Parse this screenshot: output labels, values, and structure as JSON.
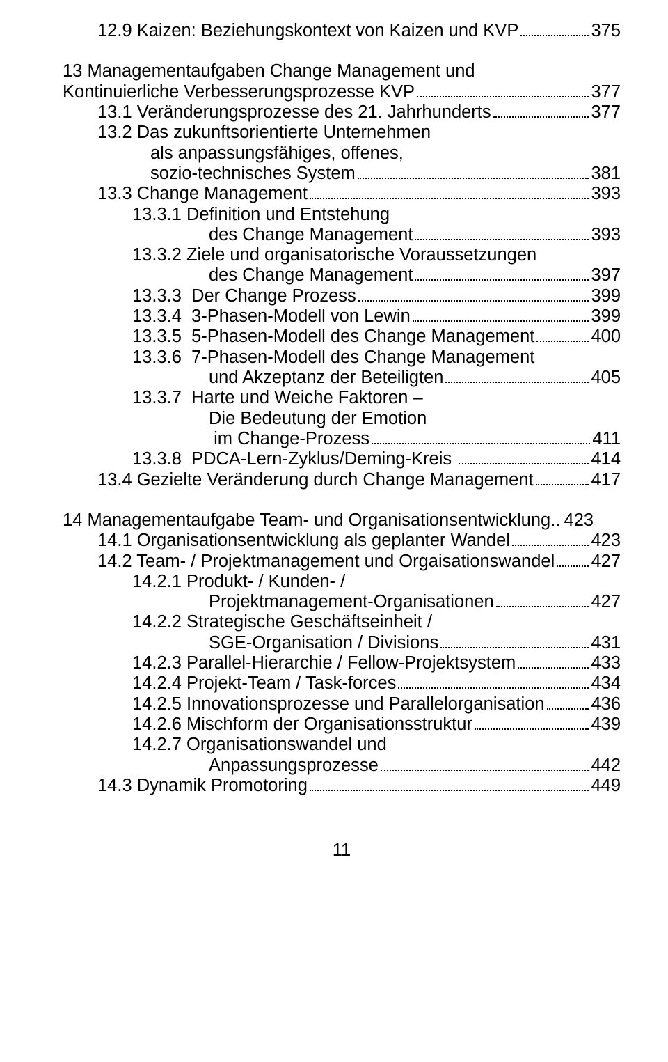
{
  "footer_page": "11",
  "lines": [
    {
      "type": "entry",
      "indent": "h-indent-1",
      "label": "12.9 Kaizen: Beziehungskontext von Kaizen und KVP",
      "page": "375"
    },
    {
      "type": "blank"
    },
    {
      "type": "cont",
      "indent": "h-indent-0",
      "text": "13 Managementaufgaben Change Management und"
    },
    {
      "type": "entry",
      "indent": "h-indent-0",
      "label": "Kontinuierliche Verbesserungsprozesse KVP",
      "page": "377"
    },
    {
      "type": "entry",
      "indent": "h-indent-1",
      "label": "13.1 Veränderungsprozesse des 21. Jahrhunderts",
      "page": "377"
    },
    {
      "type": "cont",
      "indent": "h-indent-1",
      "text": "13.2 Das zukunftsorientierte Unternehmen"
    },
    {
      "type": "cont",
      "indent": "h-cont-2a",
      "text": "als anpassungsfähiges, offenes,"
    },
    {
      "type": "entry",
      "indent": "h-cont-2a",
      "label": "sozio-technisches System",
      "page": "381"
    },
    {
      "type": "entry",
      "indent": "h-indent-1",
      "label": "13.3 Change Management",
      "page": "393"
    },
    {
      "type": "cont",
      "indent": "h-indent-2",
      "text": "13.3.1 Definition und Entstehung"
    },
    {
      "type": "entry",
      "indent": "h-cont-4",
      "label": "des Change Management",
      "page": "393"
    },
    {
      "type": "cont",
      "indent": "h-indent-2",
      "text": "13.3.2 Ziele und organisatorische Voraussetzungen"
    },
    {
      "type": "entry",
      "indent": "h-cont-4",
      "label": "des Change Management",
      "page": "397"
    },
    {
      "type": "entry",
      "indent": "h-indent-2",
      "label": "13.3.3  Der Change Prozess",
      "page": "399"
    },
    {
      "type": "entry",
      "indent": "h-indent-2",
      "label": "13.3.4  3-Phasen-Modell von Lewin",
      "page": "399"
    },
    {
      "type": "entry",
      "indent": "h-indent-2",
      "label": "13.3.5  5-Phasen-Modell des Change Management",
      "page": "400"
    },
    {
      "type": "cont",
      "indent": "h-indent-2",
      "text": "13.3.6  7-Phasen-Modell des Change Management"
    },
    {
      "type": "entry",
      "indent": "h-cont-4",
      "label": "und Akzeptanz der Beteiligten",
      "page": "405"
    },
    {
      "type": "cont",
      "indent": "h-indent-2",
      "text": "13.3.7  Harte und Weiche Faktoren –"
    },
    {
      "type": "cont",
      "indent": "h-cont-4",
      "text": "Die Bedeutung der Emotion"
    },
    {
      "type": "entry",
      "indent": "h-cont-4",
      "label": " im Change-Prozess",
      "page": "411"
    },
    {
      "type": "entry",
      "indent": "h-indent-2",
      "label": "13.3.8  PDCA-Lern-Zyklus/Deming-Kreis ",
      "page": "414"
    },
    {
      "type": "entry",
      "indent": "h-indent-1",
      "label": "13.4 Gezielte Veränderung durch Change Management",
      "page": "417"
    },
    {
      "type": "blank"
    },
    {
      "type": "entry",
      "indent": "h-indent-0",
      "label": "14 Managementaufgabe Team- und Organisationsentwicklung",
      "dots_style": "double-dot",
      "page": "423"
    },
    {
      "type": "entry",
      "indent": "h-indent-1",
      "label": "14.1 Organisationsentwicklung als geplanter Wandel",
      "page": "423"
    },
    {
      "type": "entry",
      "indent": "h-indent-1",
      "label": "14.2 Team- / Projektmanagement und Orgaisationswandel",
      "page": "427"
    },
    {
      "type": "cont",
      "indent": "h-indent-2",
      "text": "14.2.1 Produkt- / Kunden- /"
    },
    {
      "type": "entry",
      "indent": "h-cont-4",
      "label": "Projektmanagement-Organisationen",
      "page": "427"
    },
    {
      "type": "cont",
      "indent": "h-indent-2",
      "text": "14.2.2 Strategische Geschäftseinheit /"
    },
    {
      "type": "entry",
      "indent": "h-cont-4",
      "label": "SGE-Organisation / Divisions",
      "page": "431"
    },
    {
      "type": "entry",
      "indent": "h-indent-2",
      "label": "14.2.3 Parallel-Hierarchie / Fellow-Projektsystem",
      "page": "433"
    },
    {
      "type": "entry",
      "indent": "h-indent-2",
      "label": "14.2.4 Projekt-Team / Task-forces",
      "page": "434"
    },
    {
      "type": "entry",
      "indent": "h-indent-2",
      "label": "14.2.5 Innovationsprozesse und Parallelorganisation",
      "page": "436"
    },
    {
      "type": "entry",
      "indent": "h-indent-2",
      "label": "14.2.6 Mischform der Organisationsstruktur",
      "page": "439"
    },
    {
      "type": "cont",
      "indent": "h-indent-2",
      "text": "14.2.7 Organisationswandel und"
    },
    {
      "type": "entry",
      "indent": "h-cont-4",
      "label": "Anpassungsprozesse",
      "page": "442"
    },
    {
      "type": "entry",
      "indent": "h-indent-1",
      "label": "14.3 Dynamik Promotoring",
      "page": "449"
    }
  ]
}
